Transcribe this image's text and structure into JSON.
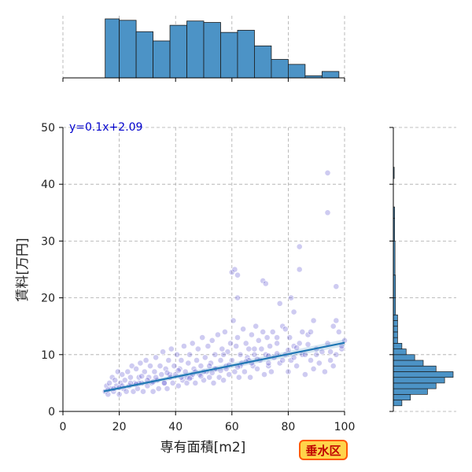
{
  "badge": {
    "label": "垂水区"
  },
  "chart_data": {
    "type": "scatter",
    "xlabel": "専有面積[m2]",
    "ylabel": "賃料[万円]",
    "xlim": [
      0,
      100
    ],
    "ylim": [
      0,
      50
    ],
    "x_ticks": [
      0,
      20,
      40,
      60,
      80,
      100
    ],
    "y_ticks": [
      0,
      10,
      20,
      30,
      40,
      50
    ],
    "grid": true,
    "annotation": "y=0.1x+2.09",
    "regression": {
      "slope": 0.1,
      "intercept": 2.09,
      "x_range": [
        14.5,
        100
      ]
    },
    "colors": {
      "points": "#3a2fc6",
      "line": "#1f77b4",
      "hist": "#4c93c6",
      "annotation": "#0000cc"
    },
    "points": [
      [
        15,
        3.5
      ],
      [
        15.5,
        4.5
      ],
      [
        16,
        3
      ],
      [
        16.5,
        5
      ],
      [
        17,
        4
      ],
      [
        17.5,
        6
      ],
      [
        18,
        3.5
      ],
      [
        18.5,
        5.5
      ],
      [
        19,
        4.5
      ],
      [
        19.5,
        7
      ],
      [
        20,
        3
      ],
      [
        20.5,
        5
      ],
      [
        21,
        6.5
      ],
      [
        21.5,
        4
      ],
      [
        22,
        5.5
      ],
      [
        22.5,
        3.5
      ],
      [
        23,
        7
      ],
      [
        23.5,
        4.5
      ],
      [
        24,
        6
      ],
      [
        24.5,
        8
      ],
      [
        25,
        3.5
      ],
      [
        25.5,
        5
      ],
      [
        26,
        7.5
      ],
      [
        26.5,
        4
      ],
      [
        27,
        6
      ],
      [
        27.5,
        8.5
      ],
      [
        28,
        5
      ],
      [
        28.5,
        3.5
      ],
      [
        29,
        7
      ],
      [
        29.5,
        9
      ],
      [
        30,
        4.5
      ],
      [
        30.5,
        6
      ],
      [
        31,
        8
      ],
      [
        31.5,
        5
      ],
      [
        32,
        3.5
      ],
      [
        32.5,
        7
      ],
      [
        33,
        9.5
      ],
      [
        33.5,
        5.5
      ],
      [
        34,
        4
      ],
      [
        34.5,
        8
      ],
      [
        35,
        6.5
      ],
      [
        35.5,
        10.5
      ],
      [
        36,
        5
      ],
      [
        36.5,
        7.5
      ],
      [
        37,
        4
      ],
      [
        37.5,
        9
      ],
      [
        38,
        6
      ],
      [
        38.5,
        11
      ],
      [
        39,
        5
      ],
      [
        39.5,
        8
      ],
      [
        40,
        6.5
      ],
      [
        40.5,
        10
      ],
      [
        41,
        4.5
      ],
      [
        41.5,
        7.5
      ],
      [
        42,
        9
      ],
      [
        42.5,
        5.5
      ],
      [
        43,
        11.5
      ],
      [
        43.5,
        7
      ],
      [
        44,
        5
      ],
      [
        44.5,
        8.5
      ],
      [
        45,
        10
      ],
      [
        45.5,
        6
      ],
      [
        46,
        12
      ],
      [
        46.5,
        7.5
      ],
      [
        47,
        5
      ],
      [
        47.5,
        9
      ],
      [
        48,
        11
      ],
      [
        48.5,
        6.5
      ],
      [
        49,
        8
      ],
      [
        49.5,
        13
      ],
      [
        50,
        5.5
      ],
      [
        50.5,
        9.5
      ],
      [
        51,
        7
      ],
      [
        51.5,
        11.5
      ],
      [
        52,
        6
      ],
      [
        52.5,
        8.5
      ],
      [
        53,
        12.5
      ],
      [
        53.5,
        5
      ],
      [
        54,
        10
      ],
      [
        54.5,
        7.5
      ],
      [
        55,
        13.5
      ],
      [
        55.5,
        6
      ],
      [
        56,
        9
      ],
      [
        56.5,
        11
      ],
      [
        57,
        5.5
      ],
      [
        57.5,
        14
      ],
      [
        58,
        8
      ],
      [
        58.5,
        10.5
      ],
      [
        59,
        6.5
      ],
      [
        59.5,
        12
      ],
      [
        60,
        9
      ],
      [
        60.5,
        16
      ],
      [
        61,
        7
      ],
      [
        61.5,
        11.5
      ],
      [
        62,
        13
      ],
      [
        62.5,
        6
      ],
      [
        63,
        10
      ],
      [
        63.5,
        8.5
      ],
      [
        64,
        14.5
      ],
      [
        64.5,
        7
      ],
      [
        65,
        12
      ],
      [
        65.5,
        9.5
      ],
      [
        66,
        11
      ],
      [
        66.5,
        6
      ],
      [
        67,
        13.5
      ],
      [
        67.5,
        8
      ],
      [
        68,
        10
      ],
      [
        68.5,
        15
      ],
      [
        69,
        7.5
      ],
      [
        69.5,
        12.5
      ],
      [
        70,
        9
      ],
      [
        70.5,
        11
      ],
      [
        71,
        14
      ],
      [
        71.5,
        6.5
      ],
      [
        72,
        10
      ],
      [
        72.5,
        13
      ],
      [
        73,
        8
      ],
      [
        73.5,
        11.5
      ],
      [
        74,
        7
      ],
      [
        74.5,
        14
      ],
      [
        75,
        9.5
      ],
      [
        76,
        12
      ],
      [
        77,
        8.5
      ],
      [
        78,
        15
      ],
      [
        79,
        10
      ],
      [
        80,
        7
      ],
      [
        80.5,
        13
      ],
      [
        81,
        9
      ],
      [
        82,
        11.5
      ],
      [
        83,
        8
      ],
      [
        84,
        12
      ],
      [
        85,
        10
      ],
      [
        86,
        6.5
      ],
      [
        87,
        13.5
      ],
      [
        88,
        9
      ],
      [
        89,
        7.5
      ],
      [
        90,
        11
      ],
      [
        91,
        8.5
      ],
      [
        92,
        10.5
      ],
      [
        93,
        7
      ],
      [
        94,
        12
      ],
      [
        95,
        9
      ],
      [
        96,
        8
      ],
      [
        97,
        10
      ],
      [
        98,
        14
      ],
      [
        99,
        11
      ],
      [
        60,
        24.5
      ],
      [
        61,
        25
      ],
      [
        62,
        24
      ],
      [
        62,
        20
      ],
      [
        71,
        23
      ],
      [
        72,
        22.5
      ],
      [
        77,
        19
      ],
      [
        81,
        20
      ],
      [
        82,
        17.5
      ],
      [
        84,
        25
      ],
      [
        84,
        29
      ],
      [
        89,
        16
      ],
      [
        94,
        35
      ],
      [
        94,
        42
      ],
      [
        97,
        22
      ],
      [
        97,
        16
      ],
      [
        96,
        15
      ],
      [
        88,
        14
      ],
      [
        85,
        14
      ],
      [
        79,
        14.5
      ],
      [
        76,
        13
      ],
      [
        68,
        11
      ],
      [
        66,
        9
      ],
      [
        57,
        10
      ],
      [
        52,
        8
      ],
      [
        47,
        7
      ],
      [
        44,
        6
      ],
      [
        38,
        6.5
      ],
      [
        30,
        5.5
      ],
      [
        24,
        5
      ],
      [
        18,
        4
      ],
      [
        21,
        4.5
      ],
      [
        27,
        5
      ],
      [
        33,
        6
      ],
      [
        36,
        5
      ],
      [
        42,
        6
      ],
      [
        46,
        6.5
      ],
      [
        50,
        7
      ],
      [
        54,
        7.5
      ],
      [
        58,
        7.5
      ],
      [
        63,
        8
      ],
      [
        67,
        8.5
      ],
      [
        73,
        8.5
      ],
      [
        78,
        9
      ],
      [
        82,
        9.5
      ],
      [
        86,
        10
      ],
      [
        90,
        10
      ],
      [
        95,
        10.5
      ],
      [
        99,
        11.5
      ],
      [
        100,
        12.5
      ],
      [
        16,
        3.8
      ],
      [
        20,
        4.2
      ],
      [
        26,
        4.8
      ],
      [
        28,
        6.2
      ],
      [
        32,
        5.2
      ],
      [
        37,
        6.8
      ],
      [
        41,
        7.2
      ],
      [
        45,
        5.8
      ],
      [
        49,
        6.2
      ],
      [
        53,
        6.8
      ],
      [
        56,
        7.2
      ],
      [
        59,
        8.2
      ],
      [
        62,
        7.8
      ],
      [
        65,
        8.8
      ],
      [
        69,
        9.2
      ],
      [
        73,
        9.8
      ],
      [
        76,
        10.2
      ],
      [
        80,
        10.8
      ],
      [
        83,
        11.2
      ],
      [
        87,
        11.8
      ]
    ],
    "x_hist": {
      "bin_edges": [
        15,
        20,
        26,
        32,
        38,
        44,
        50,
        56,
        62,
        68,
        74,
        80,
        86,
        92,
        98
      ],
      "counts": [
        83,
        81,
        65,
        52,
        74,
        80,
        78,
        64,
        67,
        45,
        26,
        19,
        3,
        9
      ]
    },
    "y_hist": {
      "bin_edges": [
        1,
        2,
        3,
        4,
        5,
        6,
        7,
        8,
        9,
        10,
        11,
        12,
        13,
        14,
        15,
        16,
        17,
        20,
        24,
        30,
        34,
        36,
        41,
        43
      ],
      "counts": [
        2,
        4,
        8,
        10,
        12,
        14,
        10,
        7,
        5,
        3,
        2,
        1,
        1,
        1,
        1,
        1,
        0.5,
        0.5,
        0.4,
        0.3,
        0.3,
        0,
        0.2
      ]
    }
  }
}
